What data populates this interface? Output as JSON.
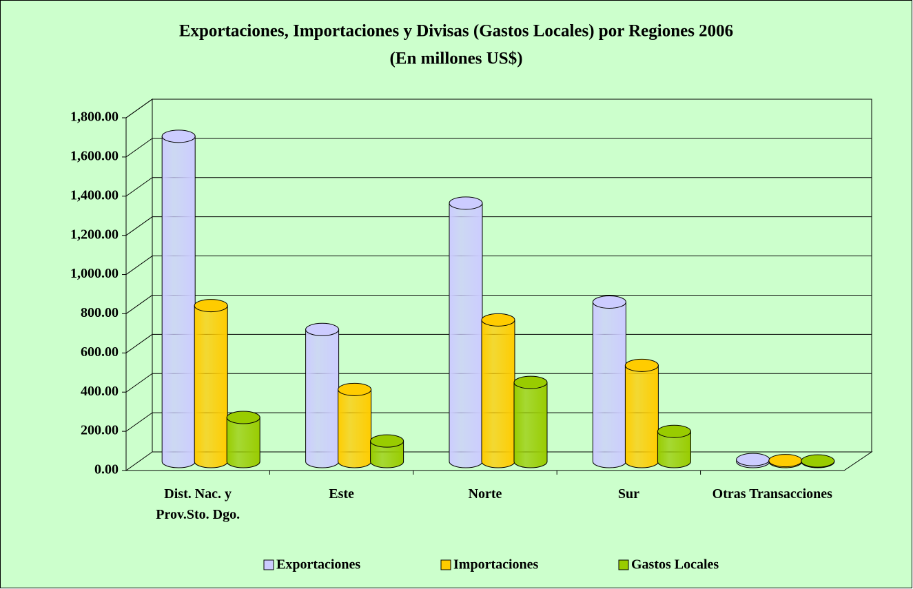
{
  "chart_data": {
    "type": "bar3d",
    "title": "Exportaciones, Importaciones y Divisas (Gastos Locales) por Regiones 2006",
    "subtitle": "(En millones US$)",
    "categories": [
      "Dist. Nac. y Prov.Sto. Dgo.",
      "Este",
      "Norte",
      "Sur",
      "Otras Transacciones"
    ],
    "series": [
      {
        "name": "Exportaciones",
        "color": "#ccccff",
        "values": [
          1660,
          674,
          1319,
          814,
          10
        ]
      },
      {
        "name": "Importaciones",
        "color": "#ffcc00",
        "values": [
          796,
          368,
          723,
          491,
          5
        ]
      },
      {
        "name": "Gastos Locales",
        "color": "#99cc00",
        "values": [
          225,
          105,
          404,
          154,
          3
        ]
      }
    ],
    "ylim": [
      0,
      1800
    ],
    "yticks": [
      {
        "value": 0,
        "label": "0.00"
      },
      {
        "value": 200,
        "label": "200.00"
      },
      {
        "value": 400,
        "label": "400.00"
      },
      {
        "value": 600,
        "label": "600.00"
      },
      {
        "value": 800,
        "label": "800.00"
      },
      {
        "value": 1000,
        "label": "1,000.00"
      },
      {
        "value": 1200,
        "label": "1,200.00"
      },
      {
        "value": 1400,
        "label": "1,400.00"
      },
      {
        "value": 1600,
        "label": "1,600.00"
      },
      {
        "value": 1800,
        "label": "1,800.00"
      }
    ],
    "grid": true,
    "legend": "bottom"
  }
}
